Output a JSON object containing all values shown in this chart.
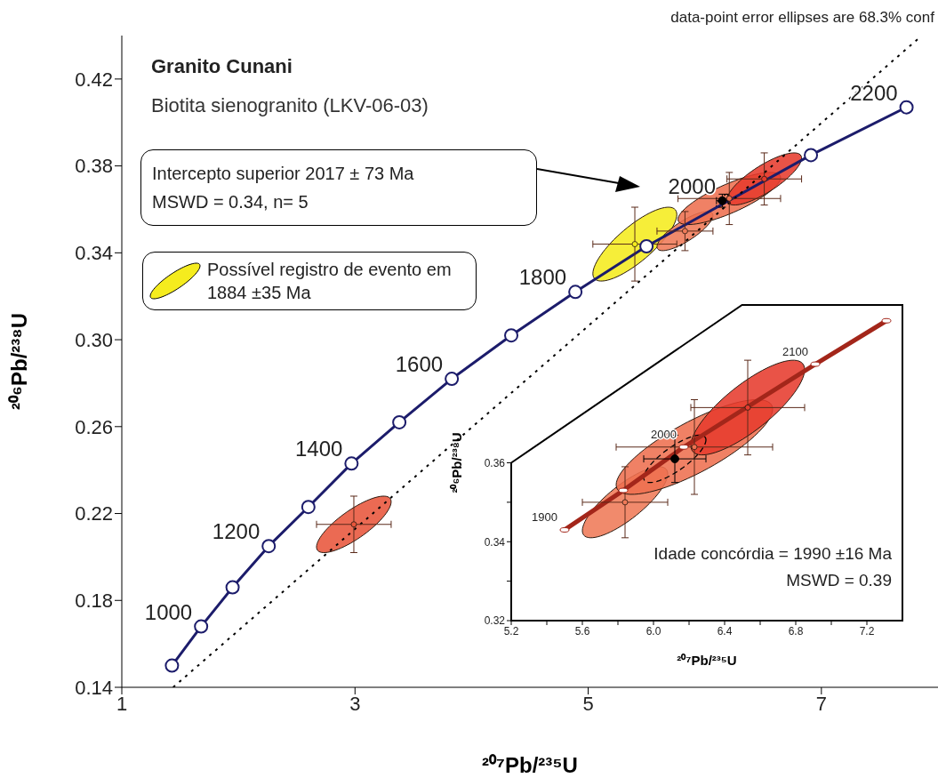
{
  "chart_data": [
    {
      "type": "scatter",
      "title": "Granito Cunani",
      "subtitle": "Biotita sienogranito (LKV-06-03)",
      "xlabel": "²⁰⁷Pb/²³⁵U",
      "ylabel": "²⁰⁶Pb/²³⁸U",
      "xlim": [
        1,
        8
      ],
      "ylim": [
        0.14,
        0.44
      ],
      "xticks": [
        1,
        3,
        5,
        7
      ],
      "yticks": [
        0.14,
        0.18,
        0.22,
        0.26,
        {
          "value": 0.3,
          "label": "0.30"
        },
        0.34,
        0.38,
        0.42
      ],
      "legend": "top left",
      "series": [
        {
          "type": "line",
          "color": "#1c1c6b",
          "marker": "circle",
          "x": [
            1.43,
            1.68,
            1.95,
            2.26,
            2.6,
            2.97,
            3.38,
            3.83,
            4.34,
            4.89,
            5.5,
            6.91,
            7.73
          ],
          "values": [
            0.15,
            0.168,
            0.186,
            0.205,
            0.223,
            0.243,
            0.262,
            0.282,
            0.302,
            0.322,
            0.343,
            0.385,
            0.407
          ]
        },
        {
          "type": "line",
          "color": "#000000",
          "marker": "none",
          "line_style": "dotted",
          "x": [
            1.44,
            7.84
          ],
          "values": [
            0.14,
            0.439
          ]
        },
        {
          "type": "scatter",
          "name": "Possível registro de evento em 1884 ±35 Ma",
          "color": "#f5ec1e",
          "x": [
            5.4
          ],
          "values": [
            0.344
          ],
          "xerrors": [
            0.36
          ],
          "errors": [
            0.017
          ]
        },
        {
          "type": "scatter",
          "color": "#e8553b",
          "colors": [
            "#e8553b",
            "#ef7a58",
            "#ee7050",
            "#e63b2e"
          ],
          "x": [
            2.99,
            5.83,
            6.21,
            6.51
          ],
          "values": [
            0.215,
            0.35,
            0.365,
            0.374
          ],
          "xerrors": [
            0.32,
            0.24,
            0.44,
            0.32
          ],
          "errors": [
            0.013,
            0.009,
            0.012,
            0.012
          ]
        },
        {
          "type": "scatter",
          "color": "#000000",
          "line_style": "dashed",
          "x": [
            6.15
          ],
          "values": [
            0.364
          ],
          "xerrors": [
            0.05
          ],
          "errors": [
            0.003
          ]
        }
      ],
      "annotations": [
        "data-point error ellipses are 68.3% conf",
        "Intercepto superior 2017 ± 73 Ma",
        "MSWD = 0.34, n= 5",
        {
          "text": "1000",
          "x": 1.68,
          "y": 0.168
        },
        {
          "text": "1200",
          "x": 2.26,
          "y": 0.205
        },
        {
          "text": "1400",
          "x": 2.97,
          "y": 0.243
        },
        {
          "text": "1600",
          "x": 3.83,
          "y": 0.282
        },
        {
          "text": "1800",
          "x": 4.89,
          "y": 0.322
        },
        {
          "text": "2000",
          "x": 6.17,
          "y": 0.364
        },
        {
          "text": "2200",
          "x": 7.73,
          "y": 0.407
        }
      ]
    },
    {
      "type": "scatter",
      "xlabel": "²⁰⁷Pb/²³⁵U",
      "ylabel": "²⁰⁶Pb/²³⁸U",
      "xlim": [
        5.2,
        7.4
      ],
      "ylim": [
        0.32,
        0.4
      ],
      "xticks": [
        5.2,
        {
          "value": 5.4,
          "label": null
        },
        5.6,
        {
          "value": 5.8,
          "label": null
        },
        {
          "value": 6,
          "label": "6.0"
        },
        {
          "value": 6.2,
          "label": null
        },
        6.4,
        {
          "value": 6.6,
          "label": null
        },
        6.8,
        {
          "value": 7,
          "label": null
        },
        7.2
      ],
      "yticks": [
        0.32,
        {
          "value": 0.33,
          "label": null
        },
        0.34,
        {
          "value": 0.35,
          "label": null
        },
        0.36
      ],
      "series": [
        {
          "type": "line",
          "color": "#a3261a",
          "marker": "circle",
          "x": [
            5.5,
            5.83,
            6.17,
            6.91,
            7.31
          ],
          "values": [
            0.343,
            0.353,
            0.364,
            0.385,
            0.396
          ]
        },
        {
          "type": "scatter",
          "color": "#ee7050",
          "colors": [
            "#ef7a58",
            "#ee7050",
            "#e63b2e"
          ],
          "x": [
            5.84,
            6.23,
            6.53
          ],
          "values": [
            0.35,
            0.364,
            0.374
          ],
          "xerrors": [
            0.24,
            0.44,
            0.32
          ],
          "errors": [
            0.009,
            0.012,
            0.012
          ]
        },
        {
          "type": "scatter",
          "color": "#000000",
          "line_style": "dashed",
          "x": [
            6.12
          ],
          "values": [
            0.361
          ],
          "xerrors": [
            0.175
          ],
          "errors": [
            0.006
          ]
        }
      ],
      "annotations": [
        "Idade concórdia = 1990 ±16 Ma",
        "MSWD = 0.39",
        {
          "text": "1900",
          "x": 5.5,
          "y": 0.343
        },
        {
          "text": "2000",
          "x": 6.17,
          "y": 0.364
        },
        {
          "text": "2100",
          "x": 6.91,
          "y": 0.385
        }
      ]
    }
  ]
}
